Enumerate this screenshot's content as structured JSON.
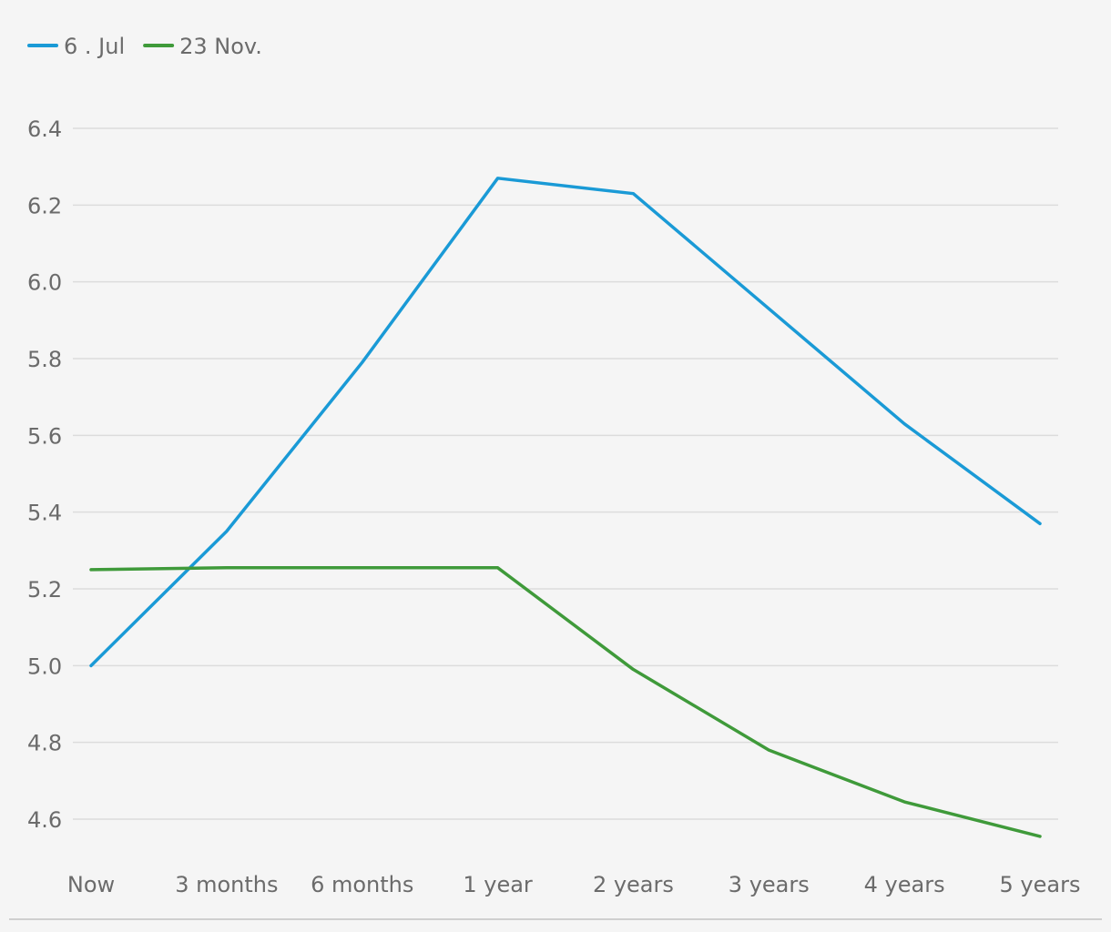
{
  "chart_data": {
    "type": "line",
    "categories": [
      "Now",
      "3 months",
      "6 months",
      "1 year",
      "2 years",
      "3 years",
      "4 years",
      "5 years"
    ],
    "series": [
      {
        "name": "6 . Jul",
        "color": "#1a9ad6",
        "values": [
          5.0,
          5.35,
          5.79,
          6.27,
          6.23,
          5.93,
          5.63,
          5.37
        ]
      },
      {
        "name": "23 Nov.",
        "color": "#3f9a3a",
        "values": [
          5.25,
          5.255,
          5.255,
          5.255,
          4.99,
          4.78,
          4.645,
          4.555
        ]
      }
    ],
    "y_ticks": [
      "4.6",
      "4.8",
      "5.0",
      "5.2",
      "5.4",
      "5.6",
      "5.8",
      "6.0",
      "6.2",
      "6.4"
    ],
    "ylim": [
      4.6,
      6.4
    ],
    "grid": true,
    "legend_position": "top-left"
  }
}
